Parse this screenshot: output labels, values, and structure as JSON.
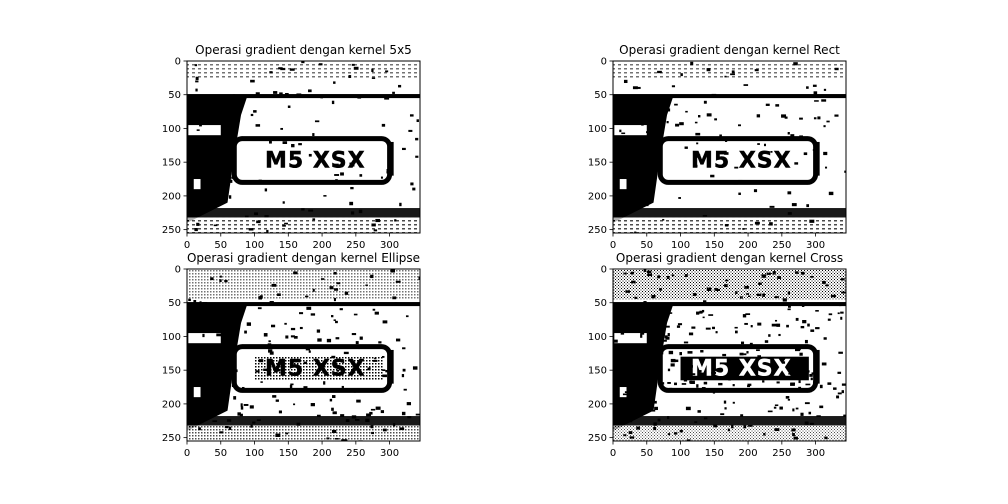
{
  "figure": {
    "background": "#ffffff"
  },
  "chart_data": [
    {
      "type": "heatmap",
      "title": "Operasi gradient dengan kernel 5x5",
      "xlabel": "",
      "ylabel": "",
      "xlim": [
        0,
        345
      ],
      "ylim": [
        255,
        0
      ],
      "xticks": [
        0,
        50,
        100,
        150,
        200,
        250,
        300
      ],
      "yticks": [
        0,
        50,
        100,
        150,
        200,
        250
      ],
      "colormap": "binary",
      "grid": false,
      "plate_text": "M5 XSX",
      "variant": "5x5"
    },
    {
      "type": "heatmap",
      "title": "Operasi gradient dengan kernel Rect",
      "xlabel": "",
      "ylabel": "",
      "xlim": [
        0,
        345
      ],
      "ylim": [
        255,
        0
      ],
      "xticks": [
        0,
        50,
        100,
        150,
        200,
        250,
        300
      ],
      "yticks": [
        0,
        50,
        100,
        150,
        200,
        250
      ],
      "colormap": "binary",
      "grid": false,
      "plate_text": "M5 XSX",
      "variant": "rect"
    },
    {
      "type": "heatmap",
      "title": "Operasi gradient dengan kernel Ellipse",
      "xlabel": "",
      "ylabel": "",
      "xlim": [
        0,
        345
      ],
      "ylim": [
        255,
        0
      ],
      "xticks": [
        0,
        50,
        100,
        150,
        200,
        250,
        300
      ],
      "yticks": [
        0,
        50,
        100,
        150,
        200,
        250
      ],
      "colormap": "binary",
      "grid": false,
      "plate_text": "M5 XSX",
      "variant": "ellipse"
    },
    {
      "type": "heatmap",
      "title": "Operasi gradient dengan kernel Cross",
      "xlabel": "",
      "ylabel": "",
      "xlim": [
        0,
        345
      ],
      "ylim": [
        255,
        0
      ],
      "xticks": [
        0,
        50,
        100,
        150,
        200,
        250,
        300
      ],
      "yticks": [
        0,
        50,
        100,
        150,
        200,
        250
      ],
      "colormap": "binary",
      "grid": false,
      "plate_text": "M5 XSX",
      "variant": "cross"
    }
  ]
}
